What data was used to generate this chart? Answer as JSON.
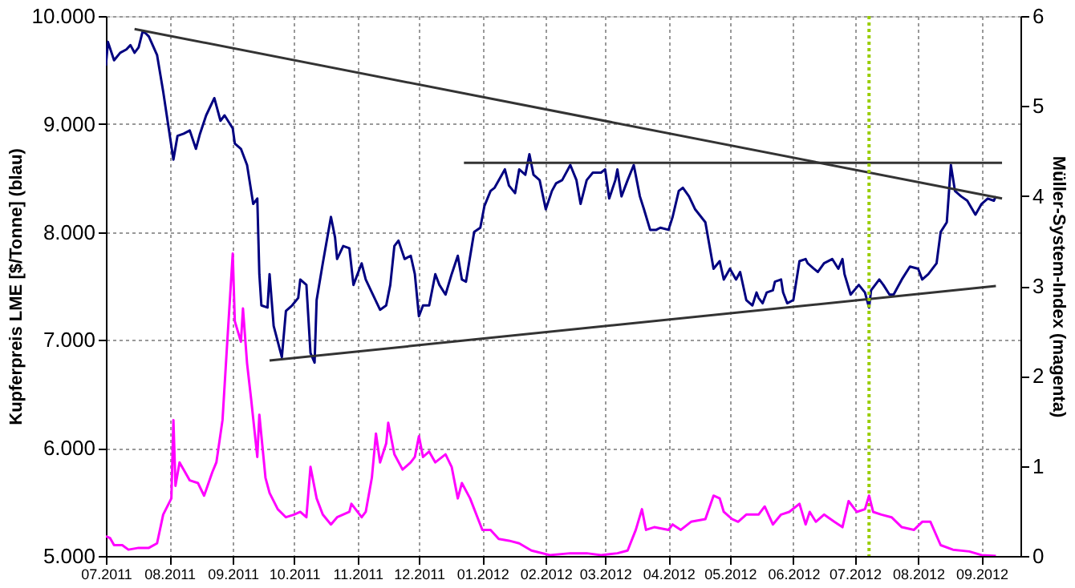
{
  "chart_data": {
    "type": "line",
    "ylabel": "Kupferpreis LME [$/Tonne] (blau)",
    "y2label": "Müller-System-Index (magenta)",
    "xlim": [
      "2011-07-01",
      "2012-09-20"
    ],
    "xticks": [
      {
        "value": "2011-07",
        "label": "07.2011"
      },
      {
        "value": "2011-08",
        "label": "08.2011"
      },
      {
        "value": "2011-09",
        "label": "09.2011"
      },
      {
        "value": "2011-10",
        "label": "10.2011"
      },
      {
        "value": "2011-11",
        "label": "11.2011"
      },
      {
        "value": "2011-12",
        "label": "12.2011"
      },
      {
        "value": "2012-01",
        "label": "01.2012"
      },
      {
        "value": "2012-02",
        "label": "02.2012"
      },
      {
        "value": "2012-03",
        "label": "03.2012"
      },
      {
        "value": "2012-04",
        "label": "04.2012"
      },
      {
        "value": "2012-05",
        "label": "05.2012"
      },
      {
        "value": "2012-06",
        "label": "06.2012"
      },
      {
        "value": "2012-07",
        "label": "07.2012"
      },
      {
        "value": "2012-08",
        "label": "08.2012"
      },
      {
        "value": "2012-09",
        "label": "09.2012"
      }
    ],
    "ylim": [
      5000,
      10000
    ],
    "yticks": [
      {
        "value": 5000,
        "label": "5.000"
      },
      {
        "value": 6000,
        "label": "6.000"
      },
      {
        "value": 7000,
        "label": "7.000"
      },
      {
        "value": 8000,
        "label": "8.000"
      },
      {
        "value": 9000,
        "label": "9.000"
      },
      {
        "value": 10000,
        "label": "10.000"
      }
    ],
    "y2lim": [
      0,
      6
    ],
    "y2ticks": [
      0,
      1,
      2,
      3,
      4,
      5,
      6
    ],
    "grid": true,
    "line_style": "solid",
    "ref_lines": [
      {
        "axis": "x",
        "value": "2012-07-08",
        "color": "#99cc00",
        "line_style": "dotted"
      }
    ],
    "series": [
      {
        "color": "#000080",
        "axis": "y",
        "x": [
          "2011-07-01",
          "2011-07-02",
          "2011-07-05",
          "2011-07-08",
          "2011-07-11",
          "2011-07-13",
          "2011-07-15",
          "2011-07-17",
          "2011-07-19",
          "2011-07-21",
          "2011-07-22",
          "2011-07-26",
          "2011-07-29",
          "2011-08-03",
          "2011-08-05",
          "2011-08-08",
          "2011-08-11",
          "2011-08-14",
          "2011-08-16",
          "2011-08-19",
          "2011-08-23",
          "2011-08-26",
          "2011-08-28",
          "2011-09-01",
          "2011-09-02",
          "2011-09-05",
          "2011-09-08",
          "2011-09-11",
          "2011-09-13",
          "2011-09-14",
          "2011-09-15",
          "2011-09-18",
          "2011-09-19",
          "2011-09-21",
          "2011-09-25",
          "2011-09-27",
          "2011-09-30",
          "2011-10-03",
          "2011-10-04",
          "2011-10-07",
          "2011-10-09",
          "2011-10-11",
          "2011-10-12",
          "2011-10-15",
          "2011-10-19",
          "2011-10-21",
          "2011-10-22",
          "2011-10-25",
          "2011-10-28",
          "2011-10-30",
          "2011-11-03",
          "2011-11-05",
          "2011-11-08",
          "2011-11-12",
          "2011-11-15",
          "2011-11-17",
          "2011-11-19",
          "2011-11-21",
          "2011-11-24",
          "2011-11-27",
          "2011-11-29",
          "2011-12-01",
          "2011-12-03",
          "2011-12-06",
          "2011-12-09",
          "2011-12-11",
          "2011-12-14",
          "2011-12-17",
          "2011-12-20",
          "2011-12-22",
          "2011-12-24",
          "2011-12-28",
          "2011-12-31",
          "2012-01-02",
          "2012-01-05",
          "2012-01-07",
          "2012-01-12",
          "2012-01-14",
          "2012-01-17",
          "2012-01-19",
          "2012-01-22",
          "2012-01-24",
          "2012-01-26",
          "2012-01-29",
          "2012-02-01",
          "2012-02-04",
          "2012-02-06",
          "2012-02-09",
          "2012-02-13",
          "2012-02-16",
          "2012-02-18",
          "2012-02-21",
          "2012-02-24",
          "2012-02-28",
          "2012-03-01",
          "2012-03-03",
          "2012-03-06",
          "2012-03-07",
          "2012-03-09",
          "2012-03-12",
          "2012-03-15",
          "2012-03-18",
          "2012-03-20",
          "2012-03-23",
          "2012-03-26",
          "2012-03-28",
          "2012-04-01",
          "2012-04-03",
          "2012-04-06",
          "2012-04-08",
          "2012-04-11",
          "2012-04-14",
          "2012-04-19",
          "2012-04-23",
          "2012-04-26",
          "2012-04-28",
          "2012-05-01",
          "2012-05-04",
          "2012-05-06",
          "2012-05-09",
          "2012-05-12",
          "2012-05-14",
          "2012-05-15",
          "2012-05-17",
          "2012-05-19",
          "2012-05-22",
          "2012-05-23",
          "2012-05-26",
          "2012-05-27",
          "2012-05-29",
          "2012-06-01",
          "2012-06-04",
          "2012-06-07",
          "2012-06-08",
          "2012-06-11",
          "2012-06-13",
          "2012-06-16",
          "2012-06-20",
          "2012-06-23",
          "2012-06-25",
          "2012-06-26",
          "2012-06-29",
          "2012-07-03",
          "2012-07-06",
          "2012-07-08",
          "2012-07-09",
          "2012-07-13",
          "2012-07-15",
          "2012-07-18",
          "2012-07-20",
          "2012-07-24",
          "2012-07-28",
          "2012-08-01",
          "2012-08-03",
          "2012-08-06",
          "2012-08-10",
          "2012-08-12",
          "2012-08-15",
          "2012-08-17",
          "2012-08-19",
          "2012-08-22",
          "2012-08-25",
          "2012-08-29",
          "2012-09-01",
          "2012-09-04",
          "2012-09-07",
          "2012-09-08"
        ],
        "values": [
          9540,
          9760,
          9590,
          9660,
          9690,
          9730,
          9660,
          9710,
          9860,
          9830,
          9810,
          9640,
          9300,
          8670,
          8890,
          8910,
          8940,
          8770,
          8910,
          9080,
          9240,
          9030,
          9080,
          8960,
          8820,
          8770,
          8620,
          8260,
          8310,
          7610,
          7320,
          7300,
          7610,
          7130,
          6840,
          7270,
          7320,
          7390,
          7560,
          7510,
          6880,
          6790,
          7370,
          7710,
          8140,
          7950,
          7750,
          7870,
          7850,
          7510,
          7710,
          7560,
          7440,
          7280,
          7320,
          7510,
          7870,
          7920,
          7750,
          7780,
          7610,
          7220,
          7320,
          7320,
          7610,
          7510,
          7420,
          7610,
          7780,
          7560,
          7540,
          8000,
          8040,
          8240,
          8380,
          8410,
          8580,
          8430,
          8360,
          8580,
          8530,
          8720,
          8530,
          8480,
          8210,
          8380,
          8450,
          8480,
          8620,
          8480,
          8260,
          8480,
          8550,
          8550,
          8580,
          8310,
          8480,
          8580,
          8330,
          8480,
          8620,
          8330,
          8210,
          8020,
          8020,
          8040,
          8020,
          8140,
          8380,
          8410,
          8330,
          8210,
          8090,
          7660,
          7730,
          7560,
          7660,
          7560,
          7630,
          7370,
          7320,
          7440,
          7390,
          7340,
          7440,
          7460,
          7540,
          7560,
          7440,
          7340,
          7370,
          7730,
          7750,
          7710,
          7660,
          7630,
          7710,
          7750,
          7660,
          7750,
          7610,
          7420,
          7510,
          7440,
          7300,
          7460,
          7560,
          7510,
          7420,
          7420,
          7560,
          7680,
          7660,
          7560,
          7610,
          7710,
          8000,
          8090,
          8620,
          8380,
          8330,
          8290,
          8160,
          8260,
          8310,
          8290,
          8330
        ]
      },
      {
        "color": "#ff00ff",
        "axis": "y2",
        "x": [
          "2011-07-01",
          "2011-07-03",
          "2011-07-05",
          "2011-07-09",
          "2011-07-12",
          "2011-07-17",
          "2011-07-22",
          "2011-07-26",
          "2011-07-29",
          "2011-08-02",
          "2011-08-03",
          "2011-08-04",
          "2011-08-06",
          "2011-08-08",
          "2011-08-11",
          "2011-08-15",
          "2011-08-18",
          "2011-08-22",
          "2011-08-24",
          "2011-08-27",
          "2011-08-29",
          "2011-09-01",
          "2011-09-02",
          "2011-09-05",
          "2011-09-06",
          "2011-09-08",
          "2011-09-10",
          "2011-09-13",
          "2011-09-14",
          "2011-09-17",
          "2011-09-19",
          "2011-09-23",
          "2011-09-27",
          "2011-10-01",
          "2011-10-04",
          "2011-10-07",
          "2011-10-09",
          "2011-10-12",
          "2011-10-15",
          "2011-10-19",
          "2011-10-22",
          "2011-10-28",
          "2011-10-29",
          "2011-11-03",
          "2011-11-05",
          "2011-11-08",
          "2011-11-10",
          "2011-11-12",
          "2011-11-15",
          "2011-11-16",
          "2011-11-19",
          "2011-11-23",
          "2011-11-27",
          "2011-11-29",
          "2011-12-01",
          "2011-12-03",
          "2011-12-06",
          "2011-12-09",
          "2011-12-14",
          "2011-12-17",
          "2011-12-20",
          "2011-12-22",
          "2011-12-26",
          "2012-01-01",
          "2012-01-05",
          "2012-01-09",
          "2012-01-14",
          "2012-01-19",
          "2012-01-25",
          "2012-02-03",
          "2012-02-13",
          "2012-02-21",
          "2012-02-28",
          "2012-03-07",
          "2012-03-12",
          "2012-03-16",
          "2012-03-19",
          "2012-03-21",
          "2012-03-25",
          "2012-04-01",
          "2012-04-03",
          "2012-04-07",
          "2012-04-12",
          "2012-04-19",
          "2012-04-23",
          "2012-04-26",
          "2012-04-28",
          "2012-05-02",
          "2012-05-05",
          "2012-05-09",
          "2012-05-15",
          "2012-05-18",
          "2012-05-22",
          "2012-05-26",
          "2012-05-30",
          "2012-06-04",
          "2012-06-07",
          "2012-06-09",
          "2012-06-12",
          "2012-06-16",
          "2012-06-21",
          "2012-06-25",
          "2012-06-28",
          "2012-07-02",
          "2012-07-06",
          "2012-07-08",
          "2012-07-10",
          "2012-07-14",
          "2012-07-19",
          "2012-07-24",
          "2012-07-30",
          "2012-08-03",
          "2012-08-07",
          "2012-08-12",
          "2012-08-18",
          "2012-08-26",
          "2012-09-01",
          "2012-09-08"
        ],
        "values": [
          0.22,
          0.2,
          0.12,
          0.12,
          0.07,
          0.09,
          0.09,
          0.14,
          0.46,
          0.64,
          1.51,
          0.78,
          1.04,
          0.96,
          0.84,
          0.81,
          0.67,
          0.93,
          1.04,
          1.51,
          2.26,
          3.36,
          2.61,
          2.38,
          2.75,
          2.14,
          1.74,
          1.1,
          1.57,
          0.87,
          0.7,
          0.52,
          0.43,
          0.46,
          0.49,
          0.43,
          0.99,
          0.64,
          0.46,
          0.35,
          0.43,
          0.49,
          0.58,
          0.43,
          0.49,
          0.87,
          1.36,
          1.04,
          1.25,
          1.48,
          1.13,
          0.96,
          1.04,
          1.1,
          1.33,
          1.1,
          1.16,
          1.04,
          1.13,
          0.99,
          0.64,
          0.81,
          0.64,
          0.29,
          0.29,
          0.19,
          0.17,
          0.14,
          0.06,
          0.01,
          0.03,
          0.03,
          0.01,
          0.03,
          0.06,
          0.29,
          0.52,
          0.29,
          0.32,
          0.29,
          0.35,
          0.29,
          0.38,
          0.41,
          0.67,
          0.64,
          0.49,
          0.41,
          0.38,
          0.46,
          0.46,
          0.55,
          0.35,
          0.46,
          0.49,
          0.58,
          0.35,
          0.49,
          0.38,
          0.46,
          0.38,
          0.32,
          0.61,
          0.49,
          0.52,
          0.67,
          0.49,
          0.46,
          0.43,
          0.32,
          0.29,
          0.38,
          0.38,
          0.12,
          0.07,
          0.05,
          0.01,
          0
        ]
      },
      {
        "type": "line",
        "color": "#333333",
        "axis": "y",
        "x": [
          "2011-07-15",
          "2012-09-11"
        ],
        "values": [
          9880,
          8310
        ]
      },
      {
        "type": "line",
        "color": "#333333",
        "axis": "y",
        "x": [
          "2011-09-19",
          "2012-09-08"
        ],
        "values": [
          6810,
          7500
        ]
      },
      {
        "type": "line",
        "color": "#333333",
        "axis": "y",
        "x": [
          "2011-12-23",
          "2012-09-11"
        ],
        "values": [
          8640,
          8640
        ]
      }
    ]
  }
}
